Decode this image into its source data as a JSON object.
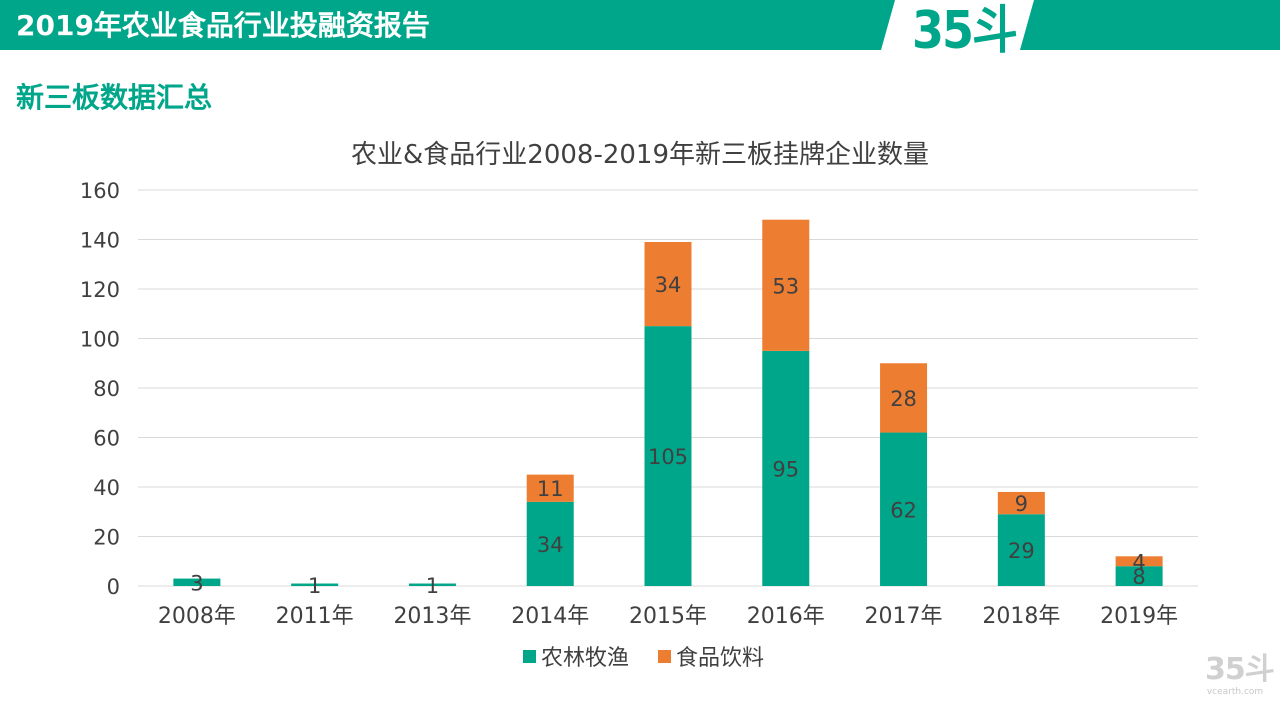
{
  "header": {
    "title": "2019年农业食品行业投融资报告",
    "logo": "35斗"
  },
  "section": {
    "title": "新三板数据汇总"
  },
  "watermark": {
    "logo": "35斗",
    "url": "vcearth.com"
  },
  "colors": {
    "brand": "#00A68A",
    "series_agri": "#00A68A",
    "series_food": "#ED7D31",
    "grid": "#D9D9D9",
    "label": "#404040"
  },
  "chart_data": {
    "type": "bar",
    "stacked": true,
    "title": "农业&食品行业2008-2019年新三板挂牌企业数量",
    "xlabel": "",
    "ylabel": "",
    "categories": [
      "2008年",
      "2011年",
      "2013年",
      "2014年",
      "2015年",
      "2016年",
      "2017年",
      "2018年",
      "2019年"
    ],
    "series": [
      {
        "name": "农林牧渔",
        "color": "#00A68A",
        "values": [
          3,
          1,
          1,
          34,
          105,
          95,
          62,
          29,
          8
        ]
      },
      {
        "name": "食品饮料",
        "color": "#ED7D31",
        "values": [
          0,
          0,
          0,
          11,
          34,
          53,
          28,
          9,
          4
        ]
      }
    ],
    "ylim": [
      0,
      160
    ],
    "yticks": [
      0,
      20,
      40,
      60,
      80,
      100,
      120,
      140,
      160
    ],
    "grid": true,
    "legend": "bottom"
  }
}
